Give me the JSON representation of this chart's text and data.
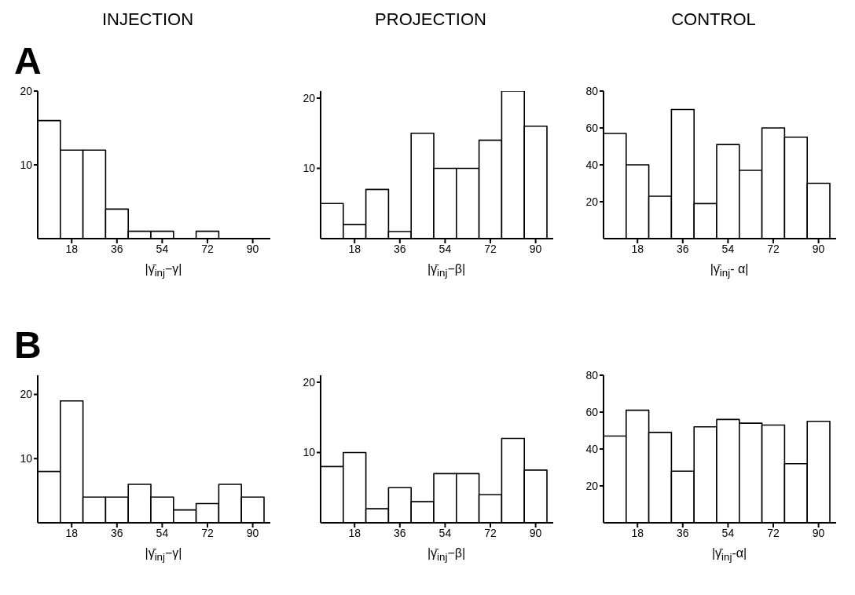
{
  "chart_data": [
    {
      "type": "histogram",
      "title": "INJECTION",
      "annotations": [
        "A"
      ],
      "xlabel": "|γ̄$_{inj}$−γ|",
      "bins": [
        4.5,
        13.5,
        22.5,
        31.5,
        40.5,
        49.5,
        58.5,
        67.5,
        76.5,
        85.5,
        94.5
      ],
      "values": [
        16,
        12,
        12,
        4,
        1,
        1,
        0,
        1,
        0,
        0
      ],
      "color": "#000000",
      "xlim": [
        4.5,
        97
      ],
      "xticks": [
        18,
        36,
        54,
        72,
        90
      ],
      "ylim": [
        0,
        20
      ],
      "yticks": [
        10,
        20
      ]
    },
    {
      "type": "histogram",
      "title": "PROJECTION",
      "xlabel": "|γ̄$_{inj}$−β|",
      "bins": [
        4.5,
        13.5,
        22.5,
        31.5,
        40.5,
        49.5,
        58.5,
        67.5,
        76.5,
        85.5,
        94.5
      ],
      "values": [
        5,
        2,
        7,
        1,
        15,
        10,
        10,
        14,
        21,
        16
      ],
      "color": "#000000",
      "xlim": [
        4.5,
        97
      ],
      "xticks": [
        18,
        36,
        54,
        72,
        90
      ],
      "ylim": [
        0,
        21
      ],
      "yticks": [
        10,
        20
      ]
    },
    {
      "type": "histogram",
      "title": "CONTROL",
      "xlabel": "|γ̄$_{inj}$- α|",
      "bins": [
        4.5,
        13.5,
        22.5,
        31.5,
        40.5,
        49.5,
        58.5,
        67.5,
        76.5,
        85.5,
        94.5
      ],
      "values": [
        57,
        40,
        23,
        70,
        19,
        51,
        37,
        60,
        55,
        30
      ],
      "color": "#000000",
      "xlim": [
        4.5,
        97
      ],
      "xticks": [
        18,
        36,
        54,
        72,
        90
      ],
      "ylim": [
        0,
        80
      ],
      "yticks": [
        20,
        40,
        60,
        80
      ]
    },
    {
      "type": "histogram",
      "annotations": [
        "B"
      ],
      "xlabel": "|γ̄$_{inj}$−γ|",
      "bins": [
        4.5,
        13.5,
        22.5,
        31.5,
        40.5,
        49.5,
        58.5,
        67.5,
        76.5,
        85.5,
        94.5
      ],
      "values": [
        8,
        19,
        4,
        4,
        6,
        4,
        2,
        3,
        6,
        4
      ],
      "color": "#000000",
      "xlim": [
        4.5,
        97
      ],
      "xticks": [
        18,
        36,
        54,
        72,
        90
      ],
      "ylim": [
        0,
        23
      ],
      "yticks": [
        10,
        20
      ]
    },
    {
      "type": "histogram",
      "xlabel": "|γ̄$_{inj}$−β|",
      "bins": [
        4.5,
        13.5,
        22.5,
        31.5,
        40.5,
        49.5,
        58.5,
        67.5,
        76.5,
        85.5,
        94.5
      ],
      "values": [
        8,
        10,
        2,
        5,
        3,
        7,
        7,
        4,
        12,
        7.5
      ],
      "color": "#000000",
      "xlim": [
        4.5,
        97
      ],
      "xticks": [
        18,
        36,
        54,
        72,
        90
      ],
      "ylim": [
        0,
        21
      ],
      "yticks": [
        10,
        20
      ]
    },
    {
      "type": "histogram",
      "xlabel": "|γ̄$_{inj}$-α|",
      "bins": [
        4.5,
        13.5,
        22.5,
        31.5,
        40.5,
        49.5,
        58.5,
        67.5,
        76.5,
        85.5,
        94.5
      ],
      "values": [
        47,
        61,
        49,
        28,
        52,
        56,
        54,
        53,
        32,
        55
      ],
      "color": "#000000",
      "xlim": [
        4.5,
        97
      ],
      "xticks": [
        18,
        36,
        54,
        72,
        90
      ],
      "ylim": [
        0,
        80
      ],
      "yticks": [
        20,
        40,
        60,
        80
      ]
    }
  ]
}
